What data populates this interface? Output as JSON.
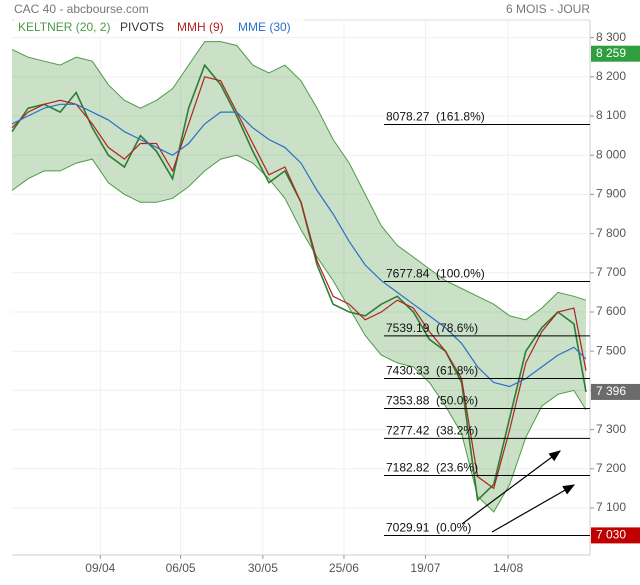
{
  "chart_data": {
    "type": "line",
    "title": "CAC 40 - abcbourse.com",
    "period": "6 MOIS - JOUR",
    "xlim": [
      0,
      144
    ],
    "xticks": [
      {
        "value": 22,
        "label": "09/04"
      },
      {
        "value": 42,
        "label": "06/05"
      },
      {
        "value": 62.5,
        "label": "30/05"
      },
      {
        "value": 82.7,
        "label": "25/06"
      },
      {
        "value": 103,
        "label": "19/07"
      },
      {
        "value": 123.6,
        "label": "14/08"
      }
    ],
    "ylim": [
      6980,
      8345
    ],
    "yticks": [
      {
        "value": 8300,
        "label": "8 300"
      },
      {
        "value": 8200,
        "label": "8 200"
      },
      {
        "value": 8100,
        "label": "8 100"
      },
      {
        "value": 8000,
        "label": "8 000"
      },
      {
        "value": 7900,
        "label": "7 900"
      },
      {
        "value": 7800,
        "label": "7 800"
      },
      {
        "value": 7700,
        "label": "7 700"
      },
      {
        "value": 7600,
        "label": "7 600"
      },
      {
        "value": 7500,
        "label": "7 500"
      },
      {
        "value": 7400,
        "label": "7 400"
      },
      {
        "value": 7300,
        "label": "7 300"
      },
      {
        "value": 7200,
        "label": "7 200"
      },
      {
        "value": 7100,
        "label": "7 100"
      }
    ],
    "grid": true,
    "x": [
      0,
      4,
      8,
      12,
      16,
      20,
      24,
      28,
      32,
      36,
      40,
      44,
      48,
      52,
      56,
      60,
      64,
      68,
      72,
      76,
      80,
      84,
      88,
      92,
      96,
      100,
      104,
      108,
      112,
      116,
      120,
      124,
      128,
      132,
      136,
      140,
      143
    ],
    "close": {
      "color": "#2f7d32",
      "values": [
        8060,
        8120,
        8130,
        8110,
        8160,
        8070,
        8000,
        7970,
        8050,
        8010,
        7940,
        8120,
        8230,
        8180,
        8100,
        8010,
        7930,
        7960,
        7880,
        7720,
        7620,
        7600,
        7590,
        7620,
        7640,
        7600,
        7530,
        7500,
        7420,
        7120,
        7160,
        7330,
        7500,
        7560,
        7600,
        7570,
        7396
      ]
    },
    "keltner": {
      "name": "KELTNER (20, 2)",
      "color": "#4e9a48",
      "upper": [
        8270,
        8250,
        8240,
        8230,
        8250,
        8240,
        8180,
        8140,
        8120,
        8140,
        8170,
        8230,
        8290,
        8290,
        8280,
        8230,
        8210,
        8230,
        8190,
        8120,
        8040,
        7980,
        7900,
        7820,
        7770,
        7740,
        7710,
        7680,
        7660,
        7640,
        7620,
        7590,
        7580,
        7610,
        7650,
        7640,
        7630
      ],
      "lower": [
        7910,
        7940,
        7960,
        7960,
        7980,
        7990,
        7930,
        7900,
        7880,
        7880,
        7890,
        7920,
        7960,
        7990,
        8000,
        7980,
        7940,
        7890,
        7810,
        7740,
        7680,
        7610,
        7540,
        7490,
        7470,
        7460,
        7420,
        7360,
        7290,
        7130,
        7090,
        7160,
        7280,
        7360,
        7390,
        7400,
        7350
      ]
    },
    "pivots_label": "PIVOTS",
    "series": [
      {
        "name": "MMH (9)",
        "color": "#b22222",
        "values": [
          8070,
          8110,
          8130,
          8140,
          8130,
          8080,
          8020,
          7990,
          8030,
          8030,
          7960,
          8080,
          8200,
          8190,
          8110,
          8030,
          7950,
          7970,
          7880,
          7730,
          7640,
          7620,
          7580,
          7600,
          7630,
          7610,
          7550,
          7500,
          7430,
          7180,
          7150,
          7300,
          7470,
          7550,
          7600,
          7610,
          7450
        ]
      },
      {
        "name": "MME (30)",
        "color": "#2a6fc9",
        "values": [
          8080,
          8100,
          8120,
          8130,
          8130,
          8110,
          8090,
          8060,
          8040,
          8020,
          8000,
          8030,
          8080,
          8110,
          8110,
          8070,
          8040,
          8020,
          7980,
          7910,
          7850,
          7780,
          7720,
          7680,
          7650,
          7620,
          7590,
          7560,
          7520,
          7460,
          7420,
          7410,
          7430,
          7460,
          7490,
          7510,
          7480
        ]
      }
    ],
    "fib_levels": [
      {
        "value": 8078.27,
        "label": "8078.27  (161.8%)"
      },
      {
        "value": 7677.84,
        "label": "7677.84  (100.0%)"
      },
      {
        "value": 7539.19,
        "label": "7539.19  (78.6%)"
      },
      {
        "value": 7430.33,
        "label": "7430.33  (61.8%)"
      },
      {
        "value": 7353.88,
        "label": "7353.88  (50.0%)"
      },
      {
        "value": 7277.42,
        "label": "7277.42  (38.2%)"
      },
      {
        "value": 7182.82,
        "label": "7182.82  (23.6%)"
      },
      {
        "value": 7029.91,
        "label": "7029.91  (0.0%)"
      }
    ],
    "price_tags": [
      {
        "value": 8259,
        "label": "8 259",
        "color": "#2e9e3e"
      },
      {
        "value": 7396,
        "label": "7 396",
        "color": "#6b6b6b"
      },
      {
        "value": 7030,
        "label": "7 030",
        "color": "#c00000"
      }
    ]
  }
}
